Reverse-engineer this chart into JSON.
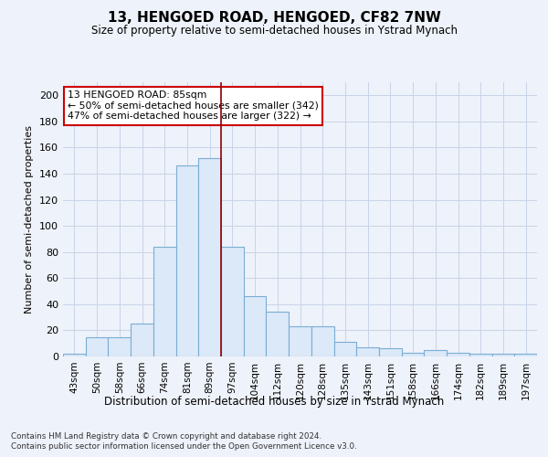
{
  "title": "13, HENGOED ROAD, HENGOED, CF82 7NW",
  "subtitle": "Size of property relative to semi-detached houses in Ystrad Mynach",
  "xlabel_bottom": "Distribution of semi-detached houses by size in Ystrad Mynach",
  "ylabel": "Number of semi-detached properties",
  "footer_line1": "Contains HM Land Registry data © Crown copyright and database right 2024.",
  "footer_line2": "Contains public sector information licensed under the Open Government Licence v3.0.",
  "categories": [
    "43sqm",
    "50sqm",
    "58sqm",
    "66sqm",
    "74sqm",
    "81sqm",
    "89sqm",
    "97sqm",
    "104sqm",
    "112sqm",
    "120sqm",
    "128sqm",
    "135sqm",
    "143sqm",
    "151sqm",
    "158sqm",
    "166sqm",
    "174sqm",
    "182sqm",
    "189sqm",
    "197sqm"
  ],
  "bar_heights": [
    2,
    15,
    15,
    25,
    84,
    146,
    152,
    84,
    46,
    34,
    23,
    23,
    11,
    7,
    6,
    3,
    5,
    3,
    2,
    2,
    2
  ],
  "bar_color": "#dce9f8",
  "bar_edge_color": "#7aadd4",
  "grid_color": "#c8d4e8",
  "ref_line_color": "#8b0000",
  "ref_line_index": 6.5,
  "annotation_title": "13 HENGOED ROAD: 85sqm",
  "annotation_line1": "← 50% of semi-detached houses are smaller (342)",
  "annotation_line2": "47% of semi-detached houses are larger (322) →",
  "annotation_box_color": "white",
  "annotation_box_edge": "#cc0000",
  "ylim": [
    0,
    210
  ],
  "yticks": [
    0,
    20,
    40,
    60,
    80,
    100,
    120,
    140,
    160,
    180,
    200
  ],
  "background_color": "#eef2fa"
}
